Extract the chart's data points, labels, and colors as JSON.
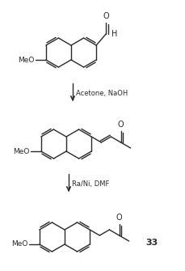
{
  "background_color": "#ffffff",
  "line_color": "#2a2a2a",
  "step1_reagent": "Acetone, NaOH",
  "step2_reagent": "Ra/Ni, DMF",
  "compound_number": "33",
  "figsize": [
    2.3,
    3.35
  ],
  "dpi": 100
}
